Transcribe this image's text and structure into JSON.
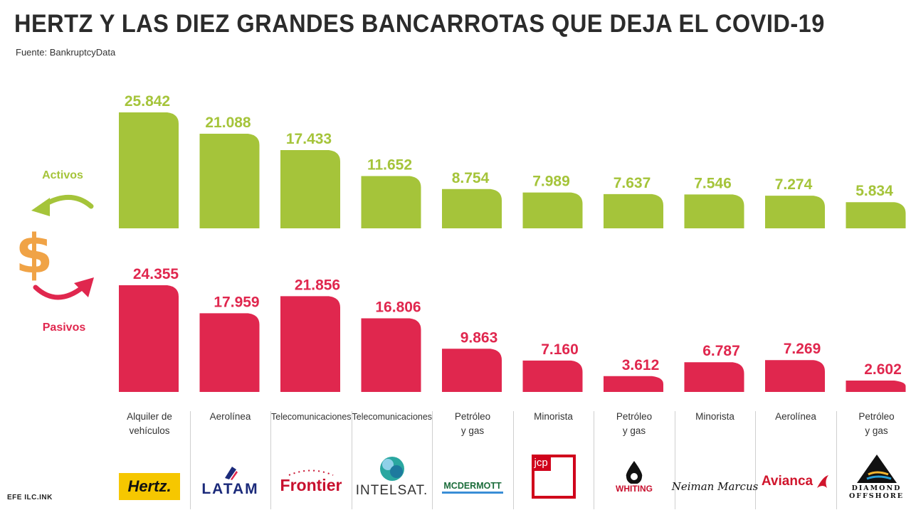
{
  "title": "HERTZ Y LAS DIEZ GRANDES BANCARROTAS QUE DEJA EL COVID-19",
  "source": "Fuente: BankruptcyData",
  "credit": "EFE ILC.INK",
  "colors": {
    "activos": "#a5c43a",
    "pasivos": "#e0274e",
    "dollar": "#f0a346",
    "text": "#2b2b2b"
  },
  "chart_data": {
    "type": "bar",
    "categories": [
      "Alquiler de vehículos",
      "Aerolínea",
      "Telecomunicaciones",
      "Telecomunicaciones",
      "Petróleo y gas",
      "Minorista",
      "Petróleo y gas",
      "Minorista",
      "Aerolínea",
      "Petróleo y gas"
    ],
    "category_lines": [
      [
        "Alquiler de",
        "vehículos"
      ],
      [
        "Aerolínea"
      ],
      [
        "Telecomunicaciones"
      ],
      [
        "Telecomunicaciones"
      ],
      [
        "Petróleo",
        "y gas"
      ],
      [
        "Minorista"
      ],
      [
        "Petróleo",
        "y gas"
      ],
      [
        "Minorista"
      ],
      [
        "Aerolínea"
      ],
      [
        "Petróleo",
        "y gas"
      ]
    ],
    "companies": [
      "Hertz.",
      "LATAM",
      "Frontier",
      "INTELSAT.",
      "MCDERMOTT",
      "jcp",
      "WHITING",
      "Neiman Marcus",
      "Avianca",
      "DIAMOND OFFSHORE"
    ],
    "series": [
      {
        "name": "Activos",
        "values": [
          25842,
          21088,
          17433,
          11652,
          8754,
          7989,
          7637,
          7546,
          7274,
          5834
        ],
        "labels": [
          "25.842",
          "21.088",
          "17.433",
          "11.652",
          "8.754",
          "7.989",
          "7.637",
          "7.546",
          "7.274",
          "5.834"
        ]
      },
      {
        "name": "Pasivos",
        "values": [
          24355,
          17959,
          21856,
          16806,
          9863,
          7160,
          3612,
          6787,
          7269,
          2602
        ],
        "labels": [
          "24.355",
          "17.959",
          "21.856",
          "16.806",
          "9.863",
          "7.160",
          "3.612",
          "6.787",
          "7.269",
          "2.602"
        ]
      }
    ],
    "legend": {
      "activos": "Activos",
      "pasivos": "Pasivos",
      "symbol": "$"
    }
  }
}
